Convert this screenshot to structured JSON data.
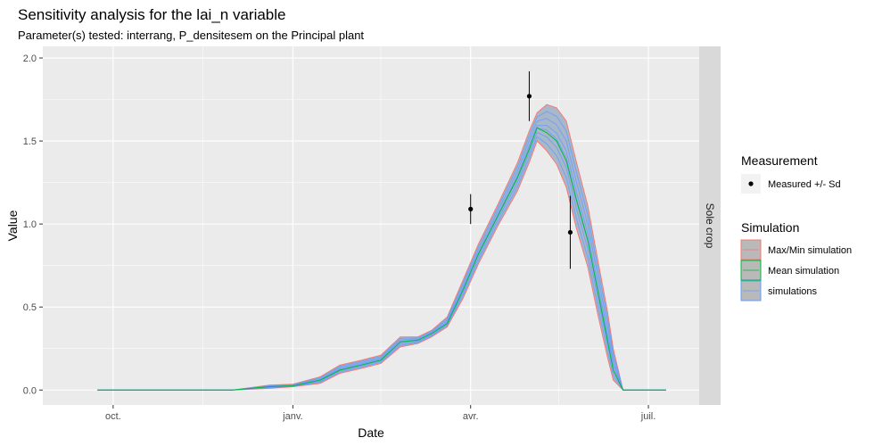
{
  "chart_data": {
    "type": "line",
    "title": "Sensitivity analysis for the lai_n variable",
    "subtitle": "Parameter(s) tested: interrang, P_densitesem on the  Principal plant",
    "xlabel": "Date",
    "ylabel": "Value",
    "facet_label": "Sole crop",
    "x_ticks": [
      "oct.",
      "janv.",
      "avr.",
      "juil."
    ],
    "y_ticks": [
      "0.0",
      "0.5",
      "1.0",
      "1.5",
      "2.0"
    ],
    "ylim": [
      -0.09,
      2.07
    ],
    "grid": true,
    "legend_position": "right",
    "legends": {
      "measurement_title": "Measurement",
      "measurement_items": [
        "Measured +/- Sd"
      ],
      "simulation_title": "Simulation",
      "simulation_items": [
        "Max/Min simulation",
        "Mean simulation",
        "simulations"
      ]
    },
    "colors": {
      "panel_bg": "#ebebeb",
      "grid": "#ffffff",
      "strip_bg": "#d9d9d9",
      "ribbon_fill": "#a8b7c9",
      "ribbon_border": "#f8766d",
      "mean_line": "#00ba38",
      "simulation_line": "#619cff",
      "point": "#000000"
    },
    "series": [
      {
        "name": "Mean simulation",
        "x": [
          "2019-09-23",
          "2019-10-15",
          "2019-11-15",
          "2019-12-01",
          "2019-12-20",
          "2020-01-01",
          "2020-01-15",
          "2020-01-25",
          "2020-02-05",
          "2020-02-15",
          "2020-02-25",
          "2020-03-05",
          "2020-03-12",
          "2020-03-20",
          "2020-03-28",
          "2020-04-05",
          "2020-04-15",
          "2020-04-25",
          "2020-05-01",
          "2020-05-05",
          "2020-05-10",
          "2020-05-15",
          "2020-05-20",
          "2020-05-25",
          "2020-05-31",
          "2020-06-05",
          "2020-06-10",
          "2020-06-13",
          "2020-06-18",
          "2020-07-01",
          "2020-07-10"
        ],
        "y": [
          0.0,
          0.0,
          0.0,
          0.0,
          0.02,
          0.025,
          0.06,
          0.12,
          0.15,
          0.18,
          0.29,
          0.3,
          0.34,
          0.4,
          0.6,
          0.82,
          1.05,
          1.28,
          1.45,
          1.58,
          1.55,
          1.5,
          1.38,
          1.15,
          0.9,
          0.6,
          0.3,
          0.12,
          0.0,
          0.0,
          0.0
        ]
      },
      {
        "name": "Max/Min simulation",
        "x": [
          "2019-09-23",
          "2019-11-15",
          "2019-12-01",
          "2019-12-20",
          "2020-01-01",
          "2020-01-15",
          "2020-01-25",
          "2020-02-05",
          "2020-02-15",
          "2020-02-25",
          "2020-03-05",
          "2020-03-12",
          "2020-03-20",
          "2020-03-28",
          "2020-04-05",
          "2020-04-15",
          "2020-04-25",
          "2020-05-01",
          "2020-05-05",
          "2020-05-10",
          "2020-05-15",
          "2020-05-20",
          "2020-05-25",
          "2020-05-31",
          "2020-06-05",
          "2020-06-10",
          "2020-06-13",
          "2020-06-18",
          "2020-07-10"
        ],
        "ymin": [
          0.0,
          0.0,
          0.0,
          0.01,
          0.02,
          0.04,
          0.1,
          0.13,
          0.16,
          0.26,
          0.28,
          0.32,
          0.38,
          0.55,
          0.76,
          0.99,
          1.2,
          1.37,
          1.5,
          1.44,
          1.36,
          1.22,
          0.98,
          0.74,
          0.46,
          0.2,
          0.06,
          0.0,
          0.0
        ],
        "ymax": [
          0.0,
          0.0,
          0.0,
          0.03,
          0.035,
          0.08,
          0.15,
          0.18,
          0.21,
          0.32,
          0.32,
          0.36,
          0.44,
          0.66,
          0.88,
          1.12,
          1.37,
          1.56,
          1.67,
          1.72,
          1.7,
          1.62,
          1.38,
          1.11,
          0.79,
          0.48,
          0.25,
          0.0,
          0.0
        ]
      }
    ],
    "measurements": [
      {
        "x": "2020-04-01",
        "y": 1.09,
        "sd": 0.09
      },
      {
        "x": "2020-05-01",
        "y": 1.77,
        "sd": 0.15
      },
      {
        "x": "2020-05-22",
        "y": 0.95,
        "sd": 0.22
      }
    ]
  }
}
